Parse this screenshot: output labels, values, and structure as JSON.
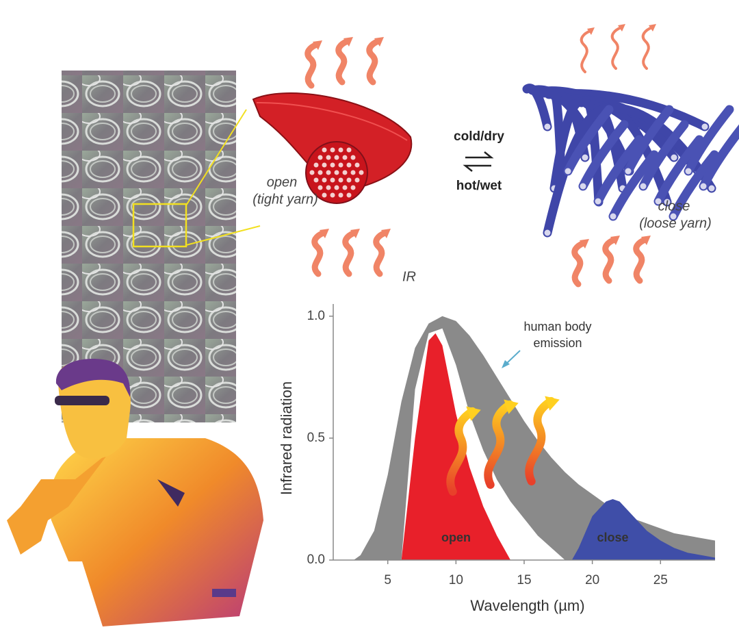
{
  "figure_labels": {
    "open": "open",
    "tight_yarn": "(tight yarn)",
    "cold_dry": "cold/dry",
    "hot_wet": "hot/wet",
    "close": "close",
    "loose_yarn": "(loose yarn)",
    "ir": "IR"
  },
  "chart_data": {
    "type": "area",
    "x_label": "Wavelength (µm)",
    "y_label": "Infrared radiation",
    "xlim": [
      1,
      29
    ],
    "xticks": [
      5,
      10,
      15,
      20,
      25
    ],
    "ylim": [
      0,
      1.05
    ],
    "yticks": [
      {
        "value": 0,
        "label": "0.0"
      },
      0.5,
      {
        "value": 1,
        "label": "1.0"
      }
    ],
    "series": [
      {
        "name": "human body emission",
        "color": "#8a8a8a",
        "x": [
          2.5,
          3,
          4,
          5,
          6,
          7,
          8,
          9,
          10,
          11,
          12,
          13,
          14,
          15,
          16,
          17,
          18,
          19,
          20,
          21,
          22,
          23,
          24,
          25,
          26,
          27,
          28,
          29
        ],
        "values": [
          0,
          0.02,
          0.12,
          0.35,
          0.65,
          0.87,
          0.97,
          1.0,
          0.98,
          0.92,
          0.84,
          0.75,
          0.66,
          0.57,
          0.49,
          0.42,
          0.36,
          0.31,
          0.27,
          0.23,
          0.2,
          0.17,
          0.15,
          0.13,
          0.11,
          0.1,
          0.09,
          0.08
        ]
      },
      {
        "color": "#ffffff",
        "x": [
          6,
          7,
          8,
          9,
          10,
          11,
          12,
          13,
          14,
          15,
          16,
          17,
          18
        ],
        "values": [
          0,
          0.7,
          0.93,
          0.95,
          0.8,
          0.6,
          0.45,
          0.33,
          0.24,
          0.17,
          0.1,
          0.05,
          0
        ]
      },
      {
        "name": "open",
        "color": "#e8202a",
        "x": [
          6,
          7,
          8,
          8.5,
          9,
          10,
          11,
          12,
          13,
          14
        ],
        "values": [
          0,
          0.5,
          0.9,
          0.93,
          0.88,
          0.6,
          0.38,
          0.22,
          0.1,
          0
        ]
      },
      {
        "name": "close",
        "color": "#3f4ea8",
        "x": [
          18.5,
          19,
          20,
          21,
          21.5,
          22,
          23,
          24,
          25,
          26,
          27,
          28,
          29
        ],
        "values": [
          0,
          0.05,
          0.18,
          0.24,
          0.25,
          0.24,
          0.18,
          0.12,
          0.08,
          0.05,
          0.03,
          0.02,
          0.01
        ]
      }
    ]
  }
}
